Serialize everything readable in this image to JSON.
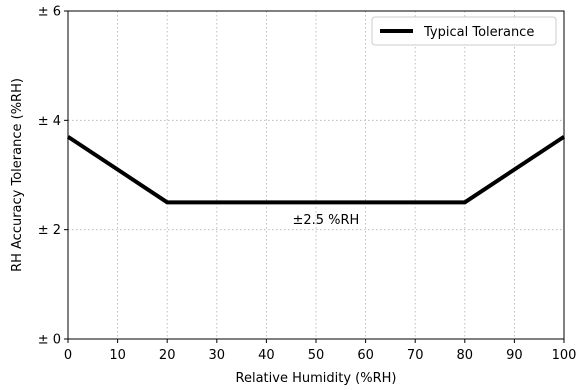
{
  "chart_data": {
    "type": "line",
    "xlabel": "Relative Humidity (%RH)",
    "ylabel": "RH Accuracy Tolerance (%RH)",
    "xlim": [
      0,
      100
    ],
    "ylim": [
      0,
      6
    ],
    "xticks": [
      0,
      10,
      20,
      30,
      40,
      50,
      60,
      70,
      80,
      90,
      100
    ],
    "xtick_labels": [
      "0",
      "10",
      "20",
      "30",
      "40",
      "50",
      "60",
      "70",
      "80",
      "90",
      "100"
    ],
    "yticks": [
      0,
      2,
      4,
      6
    ],
    "ytick_labels": [
      "± 0",
      "± 2",
      "± 4",
      "± 6"
    ],
    "grid": true,
    "legend_position": "top-right",
    "series": [
      {
        "name": "Typical Tolerance",
        "color": "#000000",
        "x": [
          0,
          20,
          80,
          100
        ],
        "y": [
          3.7,
          2.5,
          2.5,
          3.7
        ]
      }
    ],
    "annotations": [
      {
        "text": "±2.5 %RH",
        "x": 52,
        "y": 2.1
      }
    ]
  }
}
